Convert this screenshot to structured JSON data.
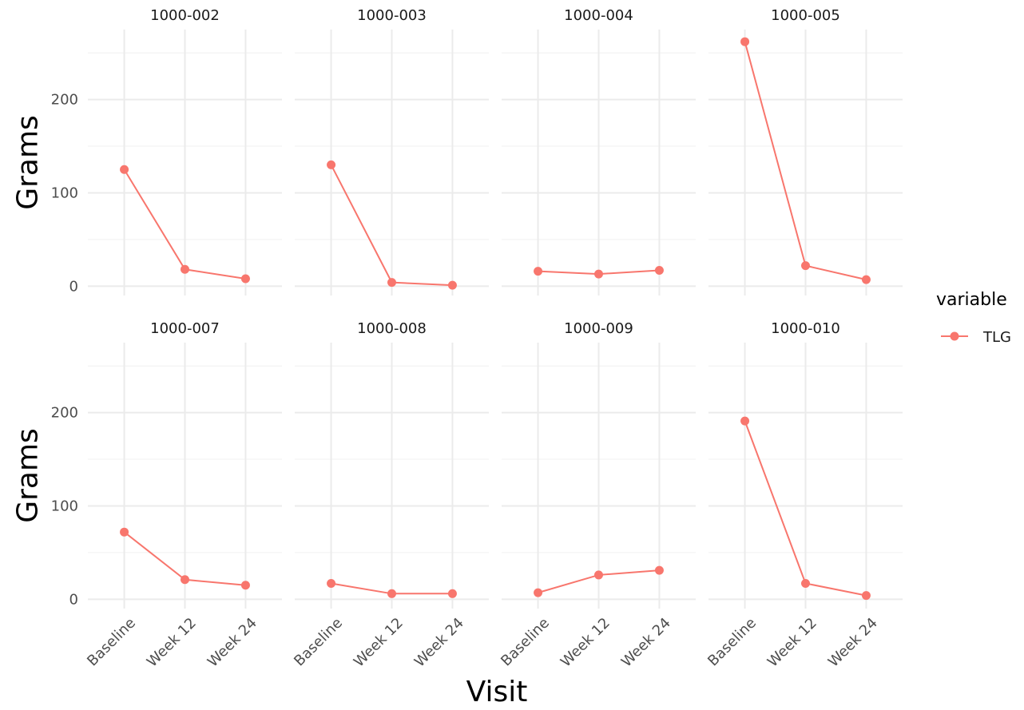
{
  "chart_data": {
    "type": "line",
    "facet_by": "subject",
    "xlabel": "Visit",
    "ylabel": "Grams",
    "categories": [
      "Baseline",
      "Week 12",
      "Week 24"
    ],
    "y_ticks": [
      0,
      100,
      200
    ],
    "ylim": [
      -10,
      275
    ],
    "grid": true,
    "legend": {
      "title": "variable",
      "position": "right",
      "entries": [
        "TLG"
      ]
    },
    "series_color": "#F8766D",
    "series": [
      {
        "name": "1000-002",
        "variable": "TLG",
        "values": [
          125,
          18,
          8
        ]
      },
      {
        "name": "1000-003",
        "variable": "TLG",
        "values": [
          130,
          4,
          1
        ]
      },
      {
        "name": "1000-004",
        "variable": "TLG",
        "values": [
          16,
          13,
          17
        ]
      },
      {
        "name": "1000-005",
        "variable": "TLG",
        "values": [
          262,
          22,
          7
        ]
      },
      {
        "name": "1000-007",
        "variable": "TLG",
        "values": [
          72,
          21,
          15
        ]
      },
      {
        "name": "1000-008",
        "variable": "TLG",
        "values": [
          17,
          6,
          6
        ]
      },
      {
        "name": "1000-009",
        "variable": "TLG",
        "values": [
          7,
          26,
          31
        ]
      },
      {
        "name": "1000-010",
        "variable": "TLG",
        "values": [
          191,
          17,
          4
        ]
      }
    ]
  }
}
